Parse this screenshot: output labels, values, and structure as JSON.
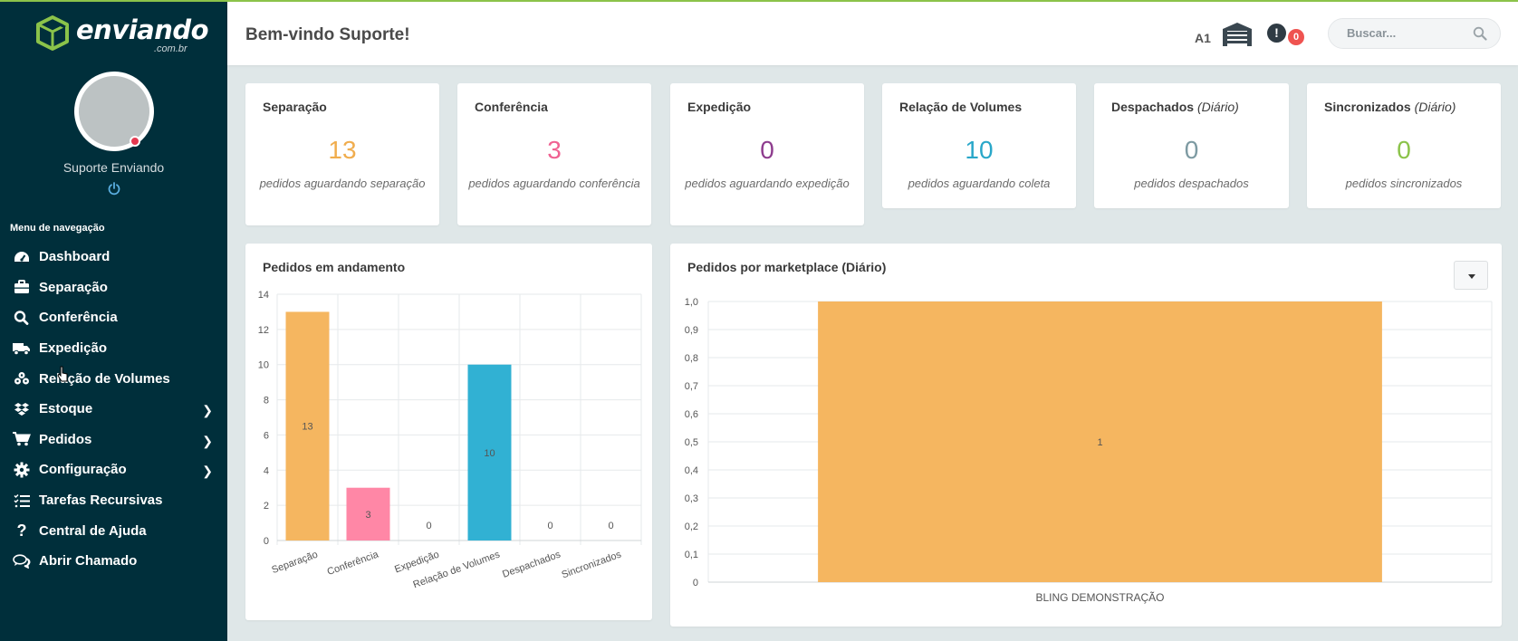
{
  "brand": {
    "name": "enviando",
    "sub": ".com.br"
  },
  "user": {
    "name": "Suporte Enviando"
  },
  "nav": {
    "title": "Menu de navegação",
    "items": [
      {
        "label": "Dashboard",
        "icon": "dashboard-icon",
        "submenu": false
      },
      {
        "label": "Separação",
        "icon": "briefcase-icon",
        "submenu": false
      },
      {
        "label": "Conferência",
        "icon": "search-icon",
        "submenu": false
      },
      {
        "label": "Expedição",
        "icon": "truck-icon",
        "submenu": false
      },
      {
        "label": "Relação de Volumes",
        "icon": "boxes-icon",
        "submenu": false
      },
      {
        "label": "Estoque",
        "icon": "dropbox-icon",
        "submenu": true
      },
      {
        "label": "Pedidos",
        "icon": "cart-icon",
        "submenu": true
      },
      {
        "label": "Configuração",
        "icon": "gear-icon",
        "submenu": true
      },
      {
        "label": "Tarefas Recursivas",
        "icon": "tasks-icon",
        "submenu": false
      },
      {
        "label": "Central de Ajuda",
        "icon": "question-icon",
        "submenu": false
      },
      {
        "label": "Abrir Chamado",
        "icon": "chat-icon",
        "submenu": false
      }
    ]
  },
  "header": {
    "welcome": "Bem-vindo Suporte!",
    "warehouse_code": "A1",
    "alert_symbol": "!",
    "alert_count": "0",
    "search_placeholder": "Buscar..."
  },
  "stats": [
    {
      "title": "Separação",
      "qualifier": "",
      "value": "13",
      "desc": "pedidos aguardando separação",
      "color": "#f0ad4e"
    },
    {
      "title": "Conferência",
      "qualifier": "",
      "value": "3",
      "desc": "pedidos aguardando conferência",
      "color": "#f06292"
    },
    {
      "title": "Expedição",
      "qualifier": "",
      "value": "0",
      "desc": "pedidos aguardando expedição",
      "color": "#8e3d8e"
    },
    {
      "title": "Relação de Volumes",
      "qualifier": "",
      "value": "10",
      "desc": "pedidos aguardando coleta",
      "color": "#29a7c9"
    },
    {
      "title": "Despachados",
      "qualifier": "(Diário)",
      "value": "0",
      "desc": "pedidos despachados",
      "color": "#7d9aa2"
    },
    {
      "title": "Sincronizados",
      "qualifier": "(Diário)",
      "value": "0",
      "desc": "pedidos sincronizados",
      "color": "#8bc34a"
    }
  ],
  "panels": {
    "progress_title": "Pedidos em andamento",
    "marketplace_title": "Pedidos por marketplace (Diário)"
  },
  "chart_data": [
    {
      "type": "bar",
      "title": "Pedidos em andamento",
      "categories": [
        "Separação",
        "Conferência",
        "Expedição",
        "Relação de Volumes",
        "Despachados",
        "Sincronizados"
      ],
      "values": [
        13,
        3,
        0,
        10,
        0,
        0
      ],
      "colors": [
        "#f5b660",
        "#ff87a6",
        "#9c5ba6",
        "#31b1d3",
        "#7d9aa2",
        "#8bc34a"
      ],
      "yticks": [
        0,
        2,
        4,
        6,
        8,
        10,
        12,
        14
      ],
      "ylim": [
        0,
        14
      ],
      "xlabel": "",
      "ylabel": ""
    },
    {
      "type": "bar",
      "title": "Pedidos por marketplace (Diário)",
      "categories": [
        "BLING DEMONSTRAÇÃO"
      ],
      "values": [
        1
      ],
      "value_labels": [
        "1"
      ],
      "colors": [
        "#f5b660"
      ],
      "yticks": [
        "0",
        "0,1",
        "0,2",
        "0,3",
        "0,4",
        "0,5",
        "0,6",
        "0,7",
        "0,8",
        "0,9",
        "1,0"
      ],
      "ylim": [
        0,
        1
      ],
      "xlabel": "",
      "ylabel": ""
    }
  ]
}
